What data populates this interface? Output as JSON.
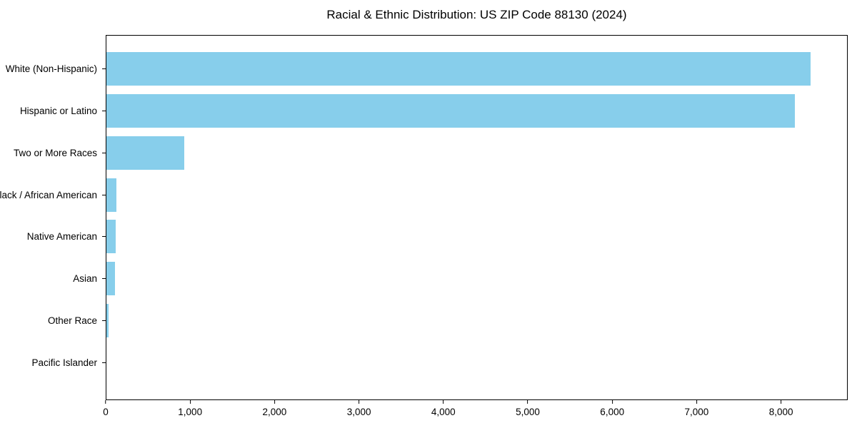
{
  "chart_data": {
    "type": "bar",
    "orientation": "horizontal",
    "title": "Racial & Ethnic Distribution: US ZIP Code 88130 (2024)",
    "categories": [
      "White (Non-Hispanic)",
      "Hispanic or Latino",
      "Two or More Races",
      "Black / African American",
      "Native American",
      "Asian",
      "Other Race",
      "Pacific Islander"
    ],
    "values": [
      8360,
      8175,
      920,
      122,
      113,
      99,
      25,
      0
    ],
    "xlabel": "",
    "ylabel": "",
    "xlim": [
      0,
      8790
    ],
    "x_ticks": [
      0,
      1000,
      2000,
      3000,
      4000,
      5000,
      6000,
      7000,
      8000
    ],
    "x_tick_labels": [
      "0",
      "1,000",
      "2,000",
      "3,000",
      "4,000",
      "5,000",
      "6,000",
      "7,000",
      "8,000"
    ],
    "grid": false,
    "legend": null,
    "bar_color": "#87CEEB",
    "background_color": "#FFFFFF",
    "text_color": "#000000",
    "axis_color": "#000000"
  }
}
